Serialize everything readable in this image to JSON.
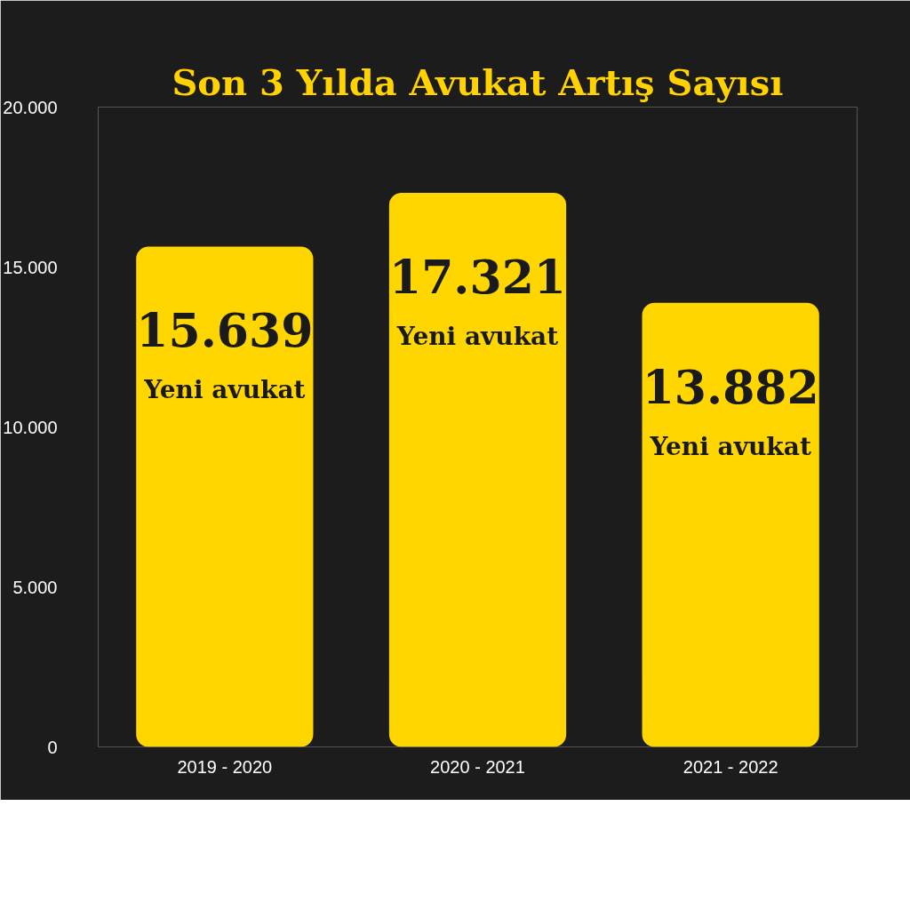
{
  "chart_data": {
    "type": "bar",
    "title": "Son 3 Yılda Avukat Artış Sayısı",
    "categories": [
      "2019 - 2020",
      "2020 - 2021",
      "2021 - 2022"
    ],
    "values": [
      15639,
      17321,
      13882
    ],
    "value_labels": [
      "15.639",
      "17.321",
      "13.882"
    ],
    "annotations": [
      "Yeni avukat",
      "Yeni avukat",
      "Yeni avukat"
    ],
    "color": "#ffd600",
    "ylim": [
      0,
      20000
    ],
    "yticks": [
      {
        "value": 0,
        "label": "0"
      },
      {
        "value": 5000,
        "label": "5.000"
      },
      {
        "value": 10000,
        "label": "10.000"
      },
      {
        "value": 15000,
        "label": "15.000"
      },
      {
        "value": 20000,
        "label": "20.000"
      }
    ],
    "grid": false
  }
}
